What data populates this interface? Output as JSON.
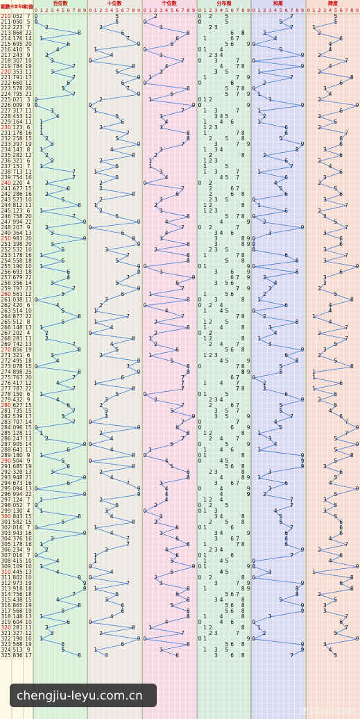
{
  "header": {
    "period": "期数",
    "number": "开奖号码",
    "sum": "和值"
  },
  "columns": [
    0,
    1,
    2,
    3,
    4,
    5,
    6,
    7,
    8,
    9
  ],
  "panels": [
    {
      "title": "百位数",
      "color": "#d9f0d9"
    },
    {
      "title": "十位数",
      "color": "#ece9e2"
    },
    {
      "title": "个位数",
      "color": "#f7d9e6"
    },
    {
      "title": "分布图",
      "color": "#d8ebdf"
    },
    {
      "title": "和尾",
      "color": "#dadaf5"
    },
    {
      "title": "跨度",
      "color": "#f8ddd2"
    }
  ],
  "line_color": "#3a7ad6",
  "rows": [
    {
      "p": 210,
      "n": [
        0,
        5,
        2
      ],
      "s": 7,
      "t": 7,
      "k": 5
    },
    {
      "p": 211,
      "n": [
        0,
        5,
        0
      ],
      "s": 5,
      "t": 5,
      "k": 5
    },
    {
      "p": 212,
      "n": [
        2,
        2,
        3
      ],
      "s": 7,
      "t": 7,
      "k": 1
    },
    {
      "p": 213,
      "n": [
        8,
        6,
        8
      ],
      "s": 22,
      "t": 2,
      "k": 2
    },
    {
      "p": 214,
      "n": [
        1,
        7,
        6
      ],
      "s": 14,
      "t": 4,
      "k": 6
    },
    {
      "p": 215,
      "n": [
        6,
        9,
        5
      ],
      "s": 20,
      "t": 0,
      "k": 4
    },
    {
      "p": 216,
      "n": [
        4,
        1,
        0
      ],
      "s": 5,
      "t": 5,
      "k": 4
    },
    {
      "p": 217,
      "n": [
        2,
        4,
        3
      ],
      "s": 9,
      "t": 9,
      "k": 2
    },
    {
      "p": 218,
      "n": [
        3,
        0,
        7
      ],
      "s": 10,
      "t": 0,
      "k": 7
    },
    {
      "p": 219,
      "n": [
        7,
        8,
        4
      ],
      "s": 19,
      "t": 9,
      "k": 4
    },
    {
      "p": 220,
      "n": [
        3,
        5,
        3
      ],
      "s": 11,
      "t": 1,
      "k": 2
    },
    {
      "p": 221,
      "n": [
        7,
        9,
        1
      ],
      "s": 17,
      "t": 7,
      "k": 8
    },
    {
      "p": 222,
      "n": [
        6,
        6,
        0
      ],
      "s": 12,
      "t": 2,
      "k": 6
    },
    {
      "p": 223,
      "n": [
        5,
        7,
        8
      ],
      "s": 20,
      "t": 0,
      "k": 3
    },
    {
      "p": 224,
      "n": [
        7,
        9,
        5
      ],
      "s": 21,
      "t": 1,
      "k": 4
    },
    {
      "p": 225,
      "n": [
        0,
        2,
        1
      ],
      "s": 3,
      "t": 3,
      "k": 2
    },
    {
      "p": 226,
      "n": [
        0,
        0,
        9
      ],
      "s": 9,
      "t": 9,
      "k": 9
    },
    {
      "p": 227,
      "n": [
        3,
        1,
        7
      ],
      "s": 11,
      "t": 1,
      "k": 6
    },
    {
      "p": 228,
      "n": [
        4,
        5,
        3
      ],
      "s": 12,
      "t": 2,
      "k": 2
    },
    {
      "p": 229,
      "n": [
        1,
        6,
        4
      ],
      "s": 11,
      "t": 1,
      "k": 5
    },
    {
      "p": 230,
      "n": [
        1,
        2,
        3
      ],
      "s": 6,
      "t": 6,
      "k": 2
    },
    {
      "p": 231,
      "n": [
        1,
        7,
        8
      ],
      "s": 16,
      "t": 6,
      "k": 7
    },
    {
      "p": 232,
      "n": [
        2,
        5,
        8
      ],
      "s": 15,
      "t": 5,
      "k": 6
    },
    {
      "p": 233,
      "n": [
        3,
        9,
        7
      ],
      "s": 19,
      "t": 9,
      "k": 6
    },
    {
      "p": 234,
      "n": [
        1,
        4,
        3
      ],
      "s": 8,
      "t": 8,
      "k": 3
    },
    {
      "p": 235,
      "n": [
        2,
        8,
        2
      ],
      "s": 12,
      "t": 2,
      "k": 6
    },
    {
      "p": 236,
      "n": [
        3,
        2,
        1
      ],
      "s": 6,
      "t": 6,
      "k": 2
    },
    {
      "p": 237,
      "n": [
        1,
        5,
        1
      ],
      "s": 7,
      "t": 7,
      "k": 4
    },
    {
      "p": 238,
      "n": [
        7,
        1,
        3
      ],
      "s": 11,
      "t": 1,
      "k": 6
    },
    {
      "p": 239,
      "n": [
        7,
        5,
        4
      ],
      "s": 16,
      "t": 6,
      "k": 3
    },
    {
      "p": 240,
      "n": [
        2,
        2,
        0
      ],
      "s": 4,
      "t": 4,
      "k": 2
    },
    {
      "p": 241,
      "n": [
        6,
        2,
        7
      ],
      "s": 15,
      "t": 5,
      "k": 5
    },
    {
      "p": 242,
      "n": [
        2,
        8,
        6
      ],
      "s": 16,
      "t": 6,
      "k": 6
    },
    {
      "p": 243,
      "n": [
        5,
        2,
        3
      ],
      "s": 10,
      "t": 0,
      "k": 3
    },
    {
      "p": 244,
      "n": [
        8,
        1,
        2
      ],
      "s": 11,
      "t": 1,
      "k": 7
    },
    {
      "p": 245,
      "n": [
        1,
        2,
        3
      ],
      "s": 6,
      "t": 6,
      "k": 2
    },
    {
      "p": 246,
      "n": [
        7,
        5,
        8
      ],
      "s": 20,
      "t": 0,
      "k": 3
    },
    {
      "p": 247,
      "n": [
        9,
        9,
        4
      ],
      "s": 22,
      "t": 2,
      "k": 5
    },
    {
      "p": 248,
      "n": [
        2,
        0,
        7
      ],
      "s": 9,
      "t": 9,
      "k": 7
    },
    {
      "p": 249,
      "n": [
        3,
        6,
        4
      ],
      "s": 13,
      "t": 3,
      "k": 3
    },
    {
      "p": 250,
      "n": [
        9,
        8,
        3
      ],
      "s": 20,
      "t": 0,
      "k": 6
    },
    {
      "p": 251,
      "n": [
        3,
        9,
        8
      ],
      "s": 20,
      "t": 0,
      "k": 6
    },
    {
      "p": 252,
      "n": [
        5,
        3,
        2
      ],
      "s": 10,
      "t": 0,
      "k": 3
    },
    {
      "p": 253,
      "n": [
        1,
        7,
        8
      ],
      "s": 16,
      "t": 6,
      "k": 7
    },
    {
      "p": 254,
      "n": [
        5,
        5,
        8
      ],
      "s": 18,
      "t": 8,
      "k": 3
    },
    {
      "p": 255,
      "n": [
        1,
        9,
        0
      ],
      "s": 10,
      "t": 0,
      "k": 9
    },
    {
      "p": 256,
      "n": [
        6,
        9,
        3
      ],
      "s": 18,
      "t": 8,
      "k": 6
    },
    {
      "p": 257,
      "n": [
        6,
        7,
        9
      ],
      "s": 22,
      "t": 2,
      "k": 3
    },
    {
      "p": 258,
      "n": [
        3,
        5,
        6
      ],
      "s": 14,
      "t": 4,
      "k": 3
    },
    {
      "p": 259,
      "n": [
        7,
        9,
        7
      ],
      "s": 23,
      "t": 3,
      "k": 2
    },
    {
      "p": 260,
      "n": [
        5,
        6,
        1
      ],
      "s": 12,
      "t": 2,
      "k": 5
    },
    {
      "p": 261,
      "n": [
        0,
        3,
        8
      ],
      "s": 11,
      "t": 1,
      "k": 8
    },
    {
      "p": 262,
      "n": [
        4,
        2,
        0
      ],
      "s": 6,
      "t": 6,
      "k": 4
    },
    {
      "p": 263,
      "n": [
        5,
        1,
        4
      ],
      "s": 10,
      "t": 0,
      "k": 4
    },
    {
      "p": 264,
      "n": [
        8,
        7,
        7
      ],
      "s": 22,
      "t": 2,
      "k": 1
    },
    {
      "p": 265,
      "n": [
        5,
        1,
        2
      ],
      "s": 8,
      "t": 8,
      "k": 4
    },
    {
      "p": 266,
      "n": [
        1,
        4,
        8
      ],
      "s": 13,
      "t": 3,
      "k": 7
    },
    {
      "p": 267,
      "n": [
        2,
        0,
        2
      ],
      "s": 4,
      "t": 4,
      "k": 2
    },
    {
      "p": 268,
      "n": [
        2,
        8,
        1
      ],
      "s": 11,
      "t": 1,
      "k": 7
    },
    {
      "p": 269,
      "n": [
        7,
        4,
        2
      ],
      "s": 13,
      "t": 3,
      "k": 5
    },
    {
      "p": 270,
      "n": [
        8,
        5,
        6
      ],
      "s": 19,
      "t": 9,
      "k": 3
    },
    {
      "p": 271,
      "n": [
        3,
        2,
        1
      ],
      "s": 6,
      "t": 6,
      "k": 2
    },
    {
      "p": 272,
      "n": [
        4,
        9,
        5
      ],
      "s": 18,
      "t": 8,
      "k": 5
    },
    {
      "p": 273,
      "n": [
        0,
        7,
        8
      ],
      "s": 15,
      "t": 5,
      "k": 8
    },
    {
      "p": 274,
      "n": [
        8,
        9,
        8
      ],
      "s": 25,
      "t": 5,
      "k": 1
    },
    {
      "p": 275,
      "n": [
        7,
        6,
        7
      ],
      "s": 20,
      "t": 0,
      "k": 1
    },
    {
      "p": 276,
      "n": [
        4,
        1,
        7
      ],
      "s": 12,
      "t": 2,
      "k": 6
    },
    {
      "p": 277,
      "n": [
        7,
        8,
        7
      ],
      "s": 22,
      "t": 2,
      "k": 1
    },
    {
      "p": 278,
      "n": [
        1,
        5,
        0
      ],
      "s": 6,
      "t": 6,
      "k": 5
    },
    {
      "p": 279,
      "n": [
        4,
        3,
        2
      ],
      "s": 9,
      "t": 9,
      "k": 2
    },
    {
      "p": 280,
      "n": [
        6,
        2,
        7
      ],
      "s": 15,
      "t": 5,
      "k": 5
    },
    {
      "p": 281,
      "n": [
        7,
        3,
        5
      ],
      "s": 15,
      "t": 5,
      "k": 4
    },
    {
      "p": 282,
      "n": [
        5,
        3,
        9
      ],
      "s": 17,
      "t": 7,
      "k": 6
    },
    {
      "p": 283,
      "n": [
        7,
        0,
        7
      ],
      "s": 14,
      "t": 4,
      "k": 7
    },
    {
      "p": 284,
      "n": [
        0,
        9,
        6
      ],
      "s": 15,
      "t": 5,
      "k": 9
    },
    {
      "p": 285,
      "n": [
        1,
        2,
        8
      ],
      "s": 11,
      "t": 1,
      "k": 7
    },
    {
      "p": 286,
      "n": [
        2,
        4,
        7
      ],
      "s": 13,
      "t": 3,
      "k": 5
    },
    {
      "p": 287,
      "n": [
        9,
        0,
        5
      ],
      "s": 14,
      "t": 4,
      "k": 9
    },
    {
      "p": 288,
      "n": [
        6,
        4,
        1
      ],
      "s": 11,
      "t": 1,
      "k": 5
    },
    {
      "p": 289,
      "n": [
        1,
        8,
        0
      ],
      "s": 9,
      "t": 9,
      "k": 8
    },
    {
      "p": 290,
      "n": [
        5,
        0,
        4
      ],
      "s": 9,
      "t": 9,
      "k": 5
    },
    {
      "p": 291,
      "n": [
        6,
        8,
        5
      ],
      "s": 19,
      "t": 9,
      "k": 3
    },
    {
      "p": 292,
      "n": [
        3,
        2,
        8
      ],
      "s": 13,
      "t": 3,
      "k": 6
    },
    {
      "p": 293,
      "n": [
        9,
        4,
        8
      ],
      "s": 21,
      "t": 1,
      "k": 5
    },
    {
      "p": 294,
      "n": [
        6,
        7,
        3
      ],
      "s": 16,
      "t": 6,
      "k": 4
    },
    {
      "p": 295,
      "n": [
        0,
        9,
        4
      ],
      "s": 13,
      "t": 3,
      "k": 9
    },
    {
      "p": 296,
      "n": [
        9,
        9,
        4
      ],
      "s": 22,
      "t": 2,
      "k": 5
    },
    {
      "p": 297,
      "n": [
        1,
        2,
        4
      ],
      "s": 7,
      "t": 7,
      "k": 3
    },
    {
      "p": 298,
      "n": [
        0,
        5,
        2
      ],
      "s": 7,
      "t": 7,
      "k": 5
    },
    {
      "p": 299,
      "n": [
        1,
        3,
        0
      ],
      "s": 4,
      "t": 4,
      "k": 3
    },
    {
      "p": 300,
      "n": [
        8,
        4,
        3
      ],
      "s": 15,
      "t": 5,
      "k": 5
    },
    {
      "p": 301,
      "n": [
        5,
        8,
        2
      ],
      "s": 15,
      "t": 5,
      "k": 6
    },
    {
      "p": 302,
      "n": [
        0,
        1,
        6
      ],
      "s": 7,
      "t": 7,
      "k": 6
    },
    {
      "p": 303,
      "n": [
        9,
        4,
        3
      ],
      "s": 16,
      "t": 6,
      "k": 6
    },
    {
      "p": 304,
      "n": [
        3,
        7,
        6
      ],
      "s": 16,
      "t": 6,
      "k": 4
    },
    {
      "p": 305,
      "n": [
        1,
        7,
        8
      ],
      "s": 16,
      "t": 6,
      "k": 7
    },
    {
      "p": 306,
      "n": [
        2,
        3,
        4
      ],
      "s": 9,
      "t": 9,
      "k": 2
    },
    {
      "p": 307,
      "n": [
        0,
        1,
        6
      ],
      "s": 7,
      "t": 7,
      "k": 6
    },
    {
      "p": 308,
      "n": [
        4,
        1,
        5
      ],
      "s": 10,
      "t": 0,
      "k": 4
    },
    {
      "p": 309,
      "n": [
        1,
        0,
        9
      ],
      "s": 10,
      "t": 0,
      "k": 9
    },
    {
      "p": 310,
      "n": [
        4,
        4,
        5
      ],
      "s": 13,
      "t": 3,
      "k": 1
    },
    {
      "p": 311,
      "n": [
        8,
        0,
        2
      ],
      "s": 10,
      "t": 0,
      "k": 8
    },
    {
      "p": 312,
      "n": [
        9,
        7,
        3
      ],
      "s": 19,
      "t": 9,
      "k": 6
    },
    {
      "p": 313,
      "n": [
        9,
        1,
        8
      ],
      "s": 18,
      "t": 8,
      "k": 8
    },
    {
      "p": 314,
      "n": [
        7,
        5,
        6
      ],
      "s": 18,
      "t": 8,
      "k": 2
    },
    {
      "p": 315,
      "n": [
        4,
        3,
        8
      ],
      "s": 15,
      "t": 5,
      "k": 5
    },
    {
      "p": 316,
      "n": [
        8,
        6,
        5
      ],
      "s": 19,
      "t": 9,
      "k": 3
    },
    {
      "p": 317,
      "n": [
        5,
        6,
        8
      ],
      "s": 19,
      "t": 9,
      "k": 3
    },
    {
      "p": 318,
      "n": [
        1,
        4,
        8
      ],
      "s": 13,
      "t": 3,
      "k": 7
    },
    {
      "p": 319,
      "n": [
        6,
        0,
        4
      ],
      "s": 10,
      "t": 0,
      "k": 6
    },
    {
      "p": 320,
      "n": [
        2,
        8,
        1
      ],
      "s": 11,
      "t": 1,
      "k": 7
    },
    {
      "p": 321,
      "n": [
        3,
        2,
        7
      ],
      "s": 12,
      "t": 2,
      "k": 5
    },
    {
      "p": 322,
      "n": [
        1,
        9,
        0
      ],
      "s": 10,
      "t": 0,
      "k": 9
    },
    {
      "p": 323,
      "n": [
        5,
        6,
        8
      ],
      "s": 19,
      "t": 9,
      "k": 3
    },
    {
      "p": 324,
      "n": [
        5,
        1,
        3
      ],
      "s": 9,
      "t": 9,
      "k": 4
    },
    {
      "p": 325,
      "n": [
        8,
        3,
        6
      ],
      "s": 17,
      "t": 7,
      "k": 5
    }
  ],
  "watermark": {
    "site": "chengjiu-leyu.com.cn",
    "source": "搜狐号@乡歌体育"
  }
}
